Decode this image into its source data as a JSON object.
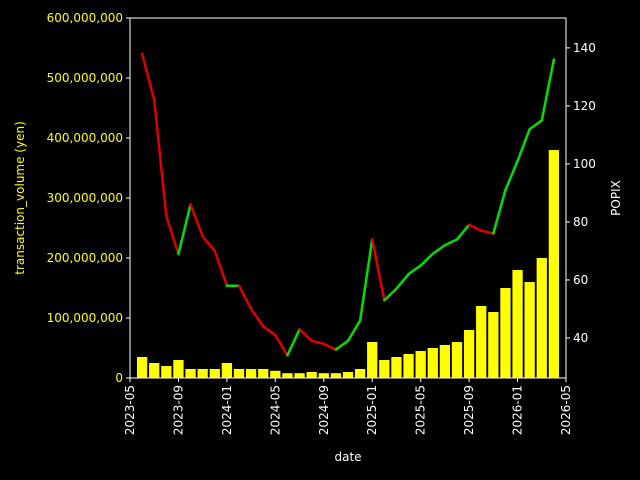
{
  "chart_data": {
    "type": "combo",
    "x_label": "date",
    "y_label": "transaction_volume (yen)",
    "y2_label": "POPIX",
    "x": [
      "2023-06",
      "2023-07",
      "2023-08",
      "2023-09",
      "2023-10",
      "2023-11",
      "2023-12",
      "2024-01",
      "2024-02",
      "2024-03",
      "2024-04",
      "2024-05",
      "2024-06",
      "2024-07",
      "2024-08",
      "2024-09",
      "2024-10",
      "2024-11",
      "2024-12",
      "2025-01",
      "2025-02",
      "2025-03",
      "2025-04",
      "2025-05",
      "2025-06",
      "2025-07",
      "2025-08",
      "2025-09",
      "2025-10",
      "2025-11",
      "2025-12",
      "2026-01",
      "2026-02",
      "2026-03",
      "2026-04"
    ],
    "xlim": [
      "2023-05",
      "2026-05"
    ],
    "xticks": [
      "2023-05",
      "2023-09",
      "2024-01",
      "2024-05",
      "2024-09",
      "2025-01",
      "2025-05",
      "2025-09",
      "2026-01",
      "2026-05"
    ],
    "ylim": [
      0,
      600000000
    ],
    "yticks": [
      0,
      {
        "value": 100000000,
        "label": "100,000,000"
      },
      {
        "value": 200000000,
        "label": "200,000,000"
      },
      {
        "value": 300000000,
        "label": "300,000,000"
      },
      {
        "value": 400000000,
        "label": "400,000,000"
      },
      {
        "value": 500000000,
        "label": "500,000,000"
      },
      {
        "value": 600000000,
        "label": "600,000,000"
      }
    ],
    "y2lim": [
      26.2,
      150.3
    ],
    "y2ticks": [
      40,
      60,
      80,
      100,
      120,
      140
    ],
    "y_label_color": "#ffff00",
    "series": [
      {
        "type": "bar",
        "color": "#ffff00",
        "values": [
          35000000,
          25000000,
          20000000,
          30000000,
          15000000,
          15000000,
          15000000,
          25000000,
          15000000,
          15000000,
          15000000,
          12000000,
          8000000,
          8000000,
          10000000,
          8000000,
          8000000,
          10000000,
          15000000,
          60000000,
          30000000,
          35000000,
          40000000,
          45000000,
          50000000,
          55000000,
          60000000,
          80000000,
          120000000,
          110000000,
          150000000,
          180000000,
          160000000,
          200000000,
          380000000
        ]
      },
      {
        "type": "line",
        "axis": "y2",
        "up_color": "#00e000",
        "down_color": "#e00000",
        "values": [
          138,
          122,
          82,
          69,
          86,
          75,
          70,
          58,
          58,
          50,
          44,
          41,
          34,
          43,
          39,
          38,
          36,
          39,
          46,
          74,
          53,
          57,
          62,
          65,
          69,
          72,
          74,
          79,
          77,
          76,
          91,
          101,
          112,
          115,
          136
        ]
      }
    ]
  }
}
